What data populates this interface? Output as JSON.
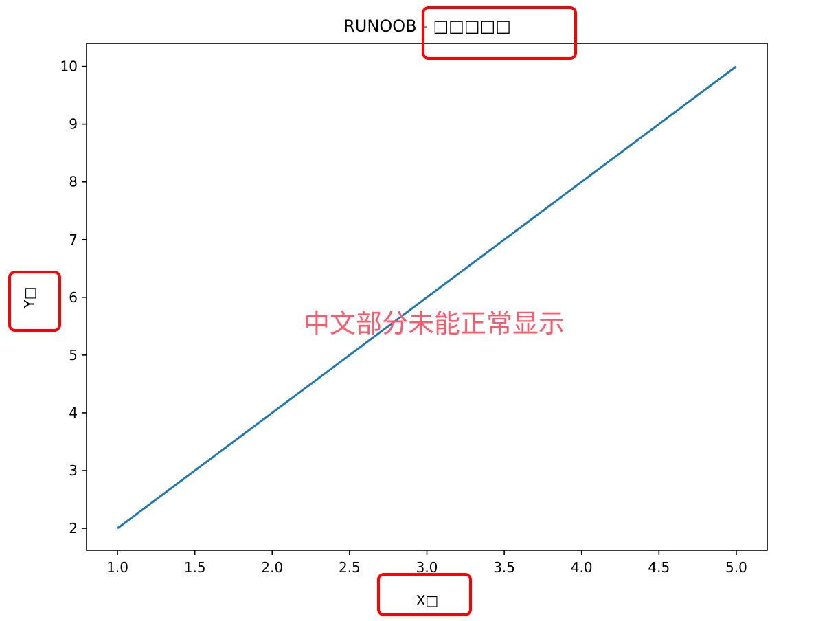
{
  "chart_data": {
    "type": "line",
    "title": "RUNOOB - □□□□□",
    "xlabel": "X□",
    "ylabel": "Y□",
    "x": [
      1,
      2,
      3,
      4,
      5
    ],
    "series": [
      {
        "values": [
          2,
          4,
          6,
          8,
          10
        ],
        "color": "#1f77b4"
      }
    ],
    "xlim": [
      0.8,
      5.2
    ],
    "ylim": [
      1.62,
      10.4
    ],
    "xticks": [
      "1.0",
      "1.5",
      "2.0",
      "2.5",
      "3.0",
      "3.5",
      "4.0",
      "4.5",
      "5.0"
    ],
    "yticks": [
      "2",
      "3",
      "4",
      "5",
      "6",
      "7",
      "8",
      "9",
      "10"
    ],
    "grid": false,
    "annotation": {
      "text": "中文部分未能正常显示",
      "color": "#ff5a6a"
    },
    "highlight_color": "#ff0000"
  }
}
